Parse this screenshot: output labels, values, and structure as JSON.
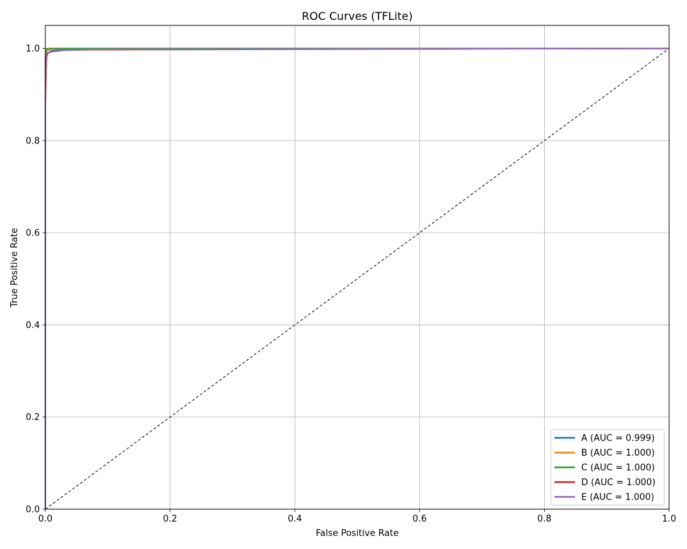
{
  "chart_data": {
    "type": "line",
    "title": "ROC Curves (TFLite)",
    "xlabel": "False Positive Rate",
    "ylabel": "True Positive Rate",
    "xlim": [
      0.0,
      1.0
    ],
    "ylim": [
      0.0,
      1.05
    ],
    "grid": true,
    "legend_position": "bottom-right",
    "x_ticks": [
      0.0,
      0.2,
      0.4,
      0.6,
      0.8,
      1.0
    ],
    "x_tick_labels": [
      "0.0",
      "0.2",
      "0.4",
      "0.6",
      "0.8",
      "1.0"
    ],
    "y_ticks": [
      0.0,
      0.2,
      0.4,
      0.6,
      0.8,
      1.0
    ],
    "y_tick_labels": [
      "0.0",
      "0.2",
      "0.4",
      "0.6",
      "0.8",
      "1.0"
    ],
    "reference_line": {
      "name": "chance",
      "x": [
        0,
        1
      ],
      "y": [
        0,
        1
      ],
      "color": "#000000",
      "style": "dashed"
    },
    "series": [
      {
        "name": "A",
        "label": "A (AUC = 0.999)",
        "color": "#1f77b4",
        "x": [
          0,
          0,
          0.001,
          0.002,
          0.004,
          0.01,
          0.03,
          0.1,
          1.0
        ],
        "y": [
          0,
          0.9,
          0.97,
          0.985,
          0.99,
          0.993,
          0.996,
          0.998,
          1.0
        ]
      },
      {
        "name": "B",
        "label": "B (AUC = 1.000)",
        "color": "#ff7f0e",
        "x": [
          0,
          0,
          0.001,
          0.003,
          0.008,
          0.02,
          1.0
        ],
        "y": [
          0,
          0.96,
          0.99,
          0.996,
          0.998,
          0.999,
          1.0
        ]
      },
      {
        "name": "C",
        "label": "C (AUC = 1.000)",
        "color": "#2ca02c",
        "x": [
          0,
          0,
          0.001,
          0.002,
          0.005,
          1.0
        ],
        "y": [
          0,
          0.98,
          0.997,
          0.999,
          1.0,
          1.0
        ]
      },
      {
        "name": "D",
        "label": "D (AUC = 1.000)",
        "color": "#d62728",
        "x": [
          0,
          0,
          0.001,
          0.002,
          0.004,
          0.01,
          0.02,
          1.0
        ],
        "y": [
          0,
          0.88,
          0.95,
          0.98,
          0.99,
          0.995,
          0.997,
          1.0
        ]
      },
      {
        "name": "E",
        "label": "E (AUC = 1.000)",
        "color": "#9467bd",
        "x": [
          0,
          0,
          0.001,
          0.003,
          0.01,
          0.03,
          0.1,
          1.0
        ],
        "y": [
          0,
          0.93,
          0.975,
          0.99,
          0.995,
          0.997,
          0.998,
          1.0
        ]
      }
    ]
  }
}
